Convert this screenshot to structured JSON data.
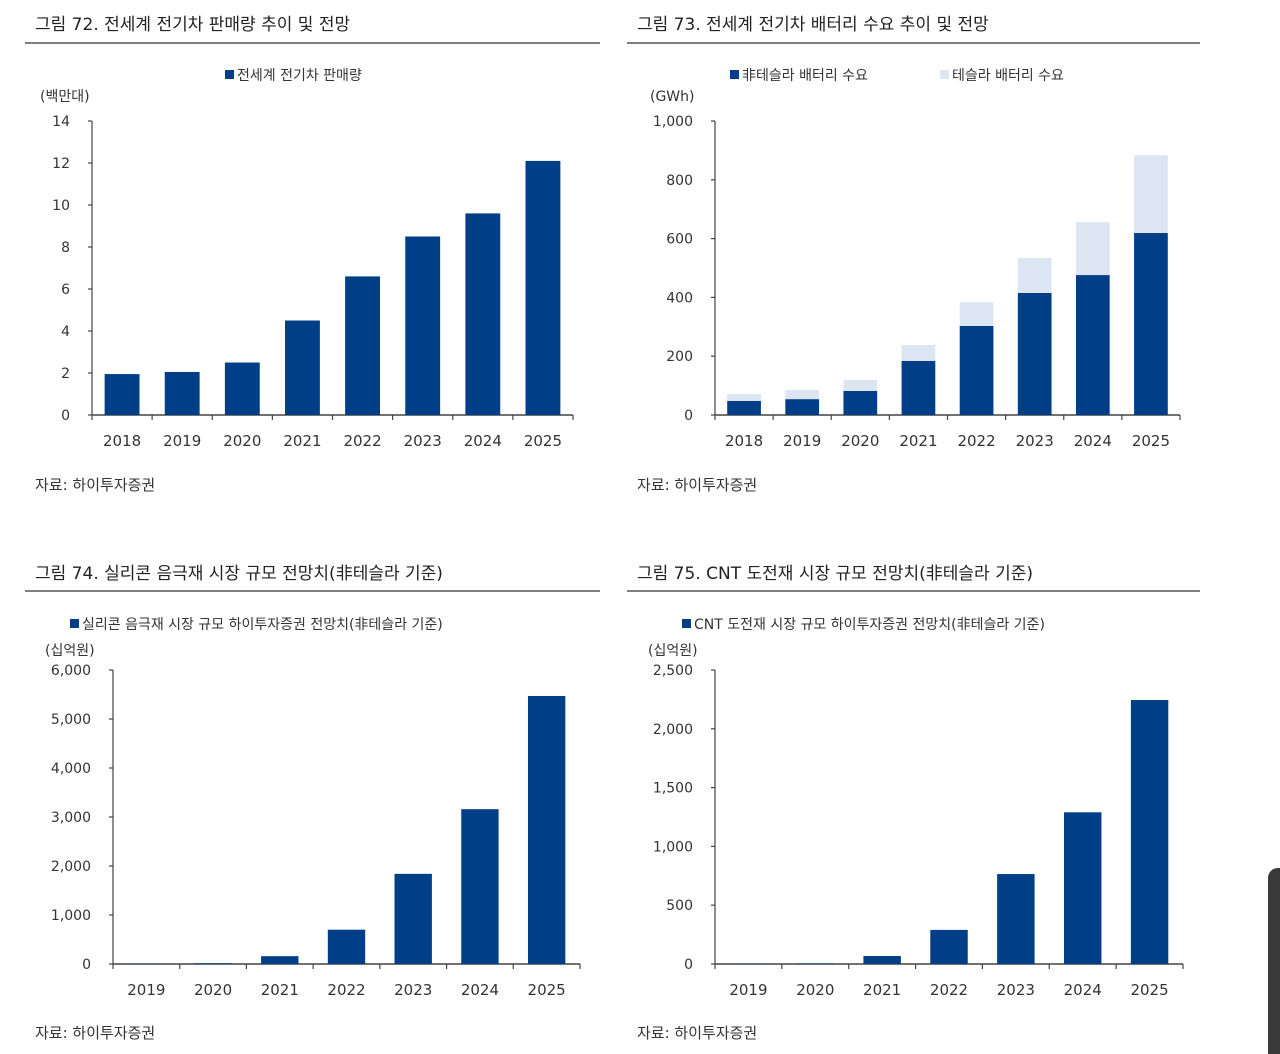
{
  "colors": {
    "primary": "#003f87",
    "secondary": "#dce6f2",
    "axis": "#444444",
    "rule": "#555555"
  },
  "chart_data": [
    {
      "type": "bar",
      "title": "그림 72. 전세계 전기차 판매량 추이 및 전망",
      "ylabel": "(백만대)",
      "source": "자료: 하이투자증권",
      "categories": [
        "2018",
        "2019",
        "2020",
        "2021",
        "2022",
        "2023",
        "2024",
        "2025"
      ],
      "ylim": [
        0,
        14
      ],
      "yticks": [
        0,
        2,
        4,
        6,
        8,
        10,
        12,
        14
      ],
      "ytick_labels": [
        "0",
        "2",
        "4",
        "6",
        "8",
        "10",
        "12",
        "14"
      ],
      "legend": "top-center",
      "grid": false,
      "series": [
        {
          "name": "전세계 전기차 판매량",
          "color": "#003f87",
          "values": [
            1.95,
            2.05,
            2.5,
            4.5,
            6.6,
            8.5,
            9.6,
            12.1
          ]
        }
      ]
    },
    {
      "type": "bar",
      "stacked": true,
      "title": "그림 73. 전세계 전기차 배터리 수요 추이 및 전망",
      "ylabel": "(GWh)",
      "source": "자료: 하이투자증권",
      "categories": [
        "2018",
        "2019",
        "2020",
        "2021",
        "2022",
        "2023",
        "2024",
        "2025"
      ],
      "ylim": [
        0,
        1000
      ],
      "yticks": [
        0,
        200,
        400,
        600,
        800,
        1000
      ],
      "ytick_labels": [
        "0",
        "200",
        "400",
        "600",
        "800",
        "1,000"
      ],
      "legend": "top-center",
      "grid": false,
      "series": [
        {
          "name": "非테슬라 배터리 수요",
          "color": "#003f87",
          "values": [
            48,
            54,
            82,
            184,
            303,
            415,
            476,
            619
          ]
        },
        {
          "name": "테슬라 배터리 수요",
          "color": "#dce6f2",
          "values": [
            23,
            31,
            37,
            54,
            81,
            119,
            180,
            265
          ]
        }
      ]
    },
    {
      "type": "bar",
      "title": "그림 74. 실리콘 음극재 시장 규모 전망치(非테슬라 기준)",
      "ylabel": "(십억원)",
      "source": "자료: 하이투자증권",
      "categories": [
        "2019",
        "2020",
        "2021",
        "2022",
        "2023",
        "2024",
        "2025"
      ],
      "ylim": [
        0,
        6000
      ],
      "yticks": [
        0,
        1000,
        2000,
        3000,
        4000,
        5000,
        6000
      ],
      "ytick_labels": [
        "0",
        "1,000",
        "2,000",
        "3,000",
        "4,000",
        "5,000",
        "6,000"
      ],
      "legend": "top-left",
      "grid": false,
      "series": [
        {
          "name": "실리콘 음극재 시장 규모 하이투자증권 전망치(非테슬라 기준)",
          "color": "#003f87",
          "values": [
            5,
            15,
            160,
            700,
            1840,
            3160,
            5470
          ]
        }
      ]
    },
    {
      "type": "bar",
      "title": "그림 75. CNT 도전재 시장 규모 전망치(非테슬라 기준)",
      "ylabel": "(십억원)",
      "source": "자료: 하이투자증권",
      "categories": [
        "2019",
        "2020",
        "2021",
        "2022",
        "2023",
        "2024",
        "2025"
      ],
      "ylim": [
        0,
        2500
      ],
      "yticks": [
        0,
        500,
        1000,
        1500,
        2000,
        2500
      ],
      "ytick_labels": [
        "0",
        "500",
        "1,000",
        "1,500",
        "2,000",
        "2,500"
      ],
      "legend": "top-left",
      "grid": false,
      "series": [
        {
          "name": "CNT 도전재 시장 규모 하이투자증권 전망치(非테슬라 기준)",
          "color": "#003f87",
          "values": [
            2,
            5,
            68,
            290,
            765,
            1290,
            2245
          ]
        }
      ]
    }
  ]
}
